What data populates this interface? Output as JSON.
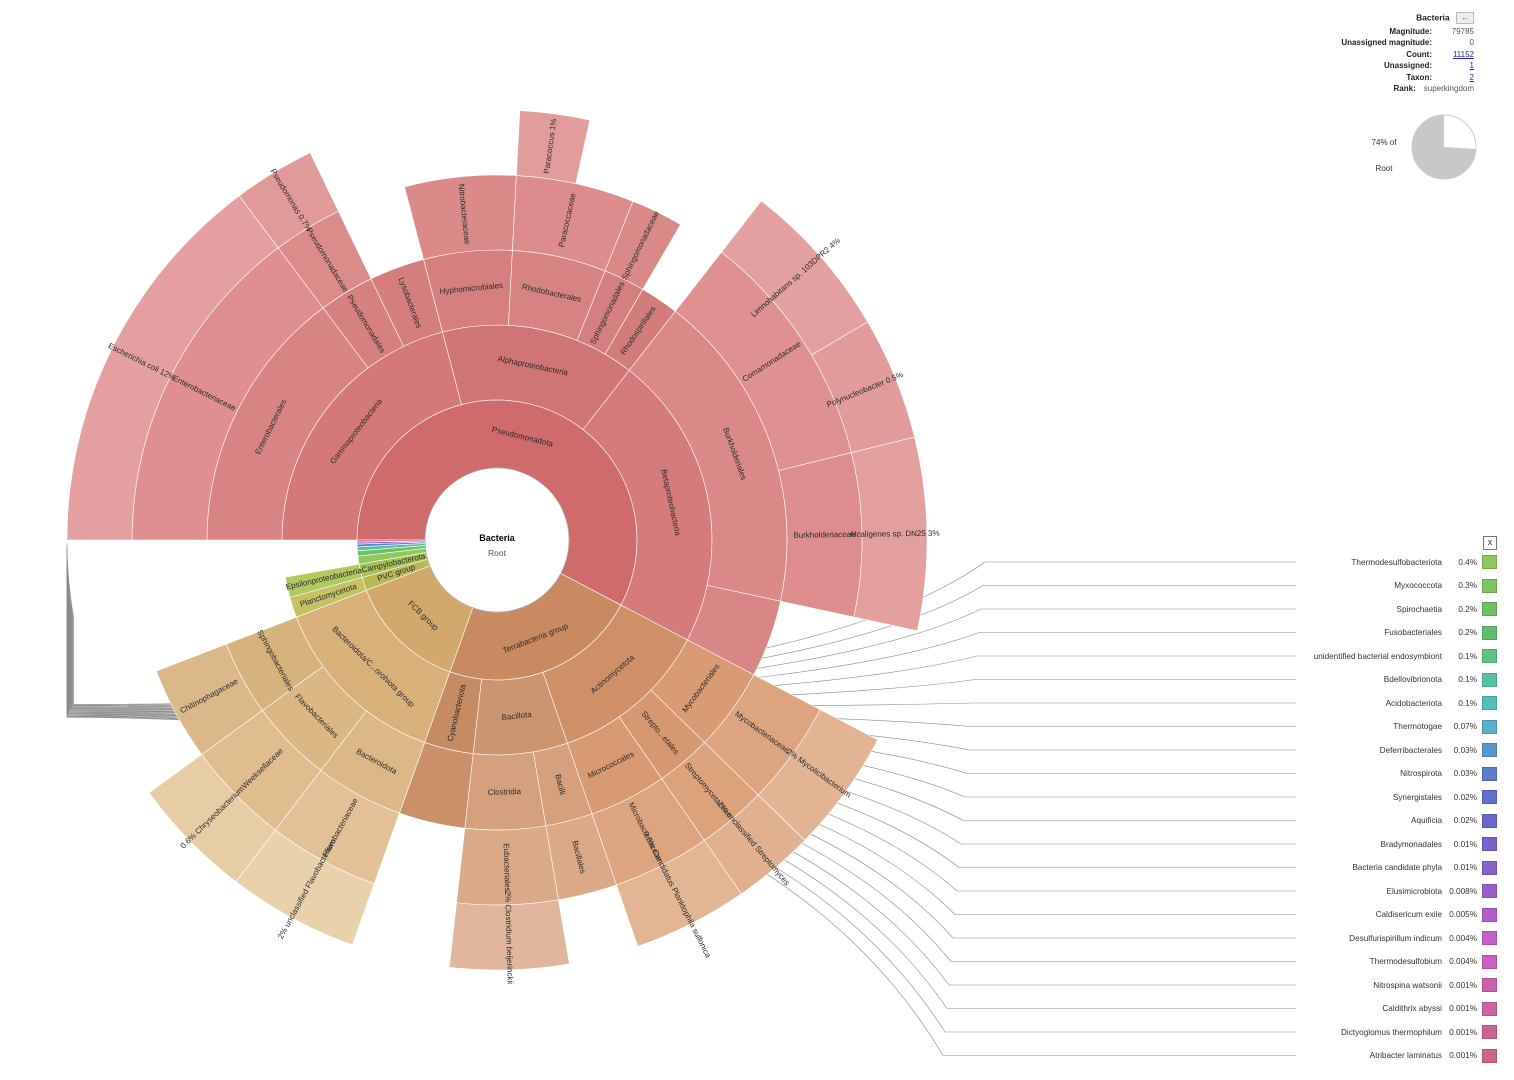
{
  "colors": {
    "red": "#cf6b6b",
    "orange": "#c98a62",
    "tan": "#d3a86c",
    "olive": "#b8b857",
    "green": "#79c25f"
  },
  "info_panel": {
    "title": "Bacteria",
    "back_label": "←",
    "rows": [
      {
        "key": "Magnitude:",
        "value": "79785",
        "link": false
      },
      {
        "key": "Unassigned magnitude:",
        "value": "0",
        "link": false
      },
      {
        "key": "Count:",
        "value": "11152",
        "link": true
      },
      {
        "key": "Unassigned:",
        "value": "1",
        "link": true
      },
      {
        "key": "Taxon:",
        "value": "2",
        "link": true
      },
      {
        "key": "Rank:",
        "value": "superkingdom",
        "link": false
      }
    ],
    "share_percent": "74% of",
    "share_of": "Root",
    "share_fraction": 0.74
  },
  "legend": {
    "close_label": "x",
    "items": [
      {
        "name": "Thermodesulfobacteriota",
        "pct": "0.4%",
        "color": "#8fc85c"
      },
      {
        "name": "Myxococcota",
        "pct": "0.3%",
        "color": "#7dc45e"
      },
      {
        "name": "Spirochaetia",
        "pct": "0.2%",
        "color": "#6cc262"
      },
      {
        "name": "Fusobacteriales",
        "pct": "0.2%",
        "color": "#5fc06b"
      },
      {
        "name": "unidentified bacterial endosymbiont",
        "pct": "0.1%",
        "color": "#5ec187"
      },
      {
        "name": "Bdellovibrionota",
        "pct": "0.1%",
        "color": "#55c1a0"
      },
      {
        "name": "Acidobacteriota",
        "pct": "0.1%",
        "color": "#52bfbb"
      },
      {
        "name": "Thermotogae",
        "pct": "0.07%",
        "color": "#56b1c9"
      },
      {
        "name": "Deferribacterales",
        "pct": "0.03%",
        "color": "#5897c9"
      },
      {
        "name": "Nitrospirota",
        "pct": "0.03%",
        "color": "#5b7dcb"
      },
      {
        "name": "Synergistales",
        "pct": "0.02%",
        "color": "#6070cc"
      },
      {
        "name": "Aquificia",
        "pct": "0.02%",
        "color": "#6c66cc"
      },
      {
        "name": "Bradymonadales",
        "pct": "0.01%",
        "color": "#7a62cb"
      },
      {
        "name": "Bacteria candidate phyla",
        "pct": "0.01%",
        "color": "#8a60cb"
      },
      {
        "name": "Elusimicrobiota",
        "pct": "0.008%",
        "color": "#9a5ecb"
      },
      {
        "name": "Caldisericum exile",
        "pct": "0.005%",
        "color": "#b05ecc"
      },
      {
        "name": "Desulfurispirillum indicum",
        "pct": "0.004%",
        "color": "#c45ec9"
      },
      {
        "name": "Thermodesulfobium",
        "pct": "0.004%",
        "color": "#cc5fbf"
      },
      {
        "name": "Nitrospina watsonii",
        "pct": "0.001%",
        "color": "#cc60ad"
      },
      {
        "name": "Caldithrix abyssi",
        "pct": "0.001%",
        "color": "#cc629f"
      },
      {
        "name": "Dictyoglomus thermophilum",
        "pct": "0.001%",
        "color": "#cc6493"
      },
      {
        "name": "Atribacter laminatus",
        "pct": "0.001%",
        "color": "#cc6688"
      }
    ]
  },
  "chart_data": {
    "type": "sunburst",
    "center": {
      "title": "Bacteria",
      "subtitle": "Root"
    },
    "start_angle_deg": 180,
    "nodes": [
      {
        "level": 1,
        "start": 0,
        "end": 37.5,
        "label": "Pseudomonadota",
        "color": "#cf6b6b"
      },
      {
        "level": 1,
        "start": 37.5,
        "end": 52.3,
        "label": "Terrabacteria group",
        "color": "#c98a62"
      },
      {
        "level": 1,
        "start": 52.3,
        "end": 61.2,
        "label": "FCB group",
        "color": "#d3a86c"
      },
      {
        "level": 1,
        "start": 61.2,
        "end": 62.2,
        "label": "PVC group",
        "color": "#b8b857"
      },
      {
        "level": 1,
        "start": 62.2,
        "end": 63.2,
        "label": "Campylobacterota",
        "color": "#a9c258"
      },
      {
        "level": 1,
        "start": 63.2,
        "end": 63.8,
        "label": "",
        "color": "#8fc85c"
      },
      {
        "level": 1,
        "start": 63.8,
        "end": 64.2,
        "label": "",
        "color": "#6cc262"
      },
      {
        "level": 1,
        "start": 64.2,
        "end": 64.5,
        "label": "",
        "color": "#55c1a0"
      },
      {
        "level": 1,
        "start": 64.5,
        "end": 64.7,
        "label": "",
        "color": "#5b7dcb"
      },
      {
        "level": 1,
        "start": 64.7,
        "end": 64.85,
        "label": "",
        "color": "#9a5ecb"
      },
      {
        "level": 1,
        "start": 64.85,
        "end": 65,
        "label": "",
        "color": "#cc6688"
      },
      {
        "level": 2,
        "start": 0,
        "end": 13.6,
        "label": "Gammaproteobacteria",
        "color": "#d47878"
      },
      {
        "level": 2,
        "start": 13.6,
        "end": 23.1,
        "label": "Alphaproteobacteria",
        "color": "#d07575"
      },
      {
        "level": 2,
        "start": 23.1,
        "end": 37.5,
        "label": "Betaproteobacteria",
        "color": "#d57b7b"
      },
      {
        "level": 2,
        "start": 37.5,
        "end": 45.3,
        "label": "Actinomycetota",
        "color": "#cf9068"
      },
      {
        "level": 2,
        "start": 45.3,
        "end": 49.9,
        "label": "Bacillota",
        "color": "#cd9470"
      },
      {
        "level": 2,
        "start": 49.9,
        "end": 52.3,
        "label": "Cyanobacteriota",
        "color": "#c58b63"
      },
      {
        "level": 2,
        "start": 52.3,
        "end": 61.2,
        "label": "Bacteroidota/C...orohiota group",
        "color": "#d8b07a"
      },
      {
        "level": 2,
        "start": 61.2,
        "end": 62.2,
        "label": "Planctomycetota",
        "color": "#c4c262"
      },
      {
        "level": 2,
        "start": 62.2,
        "end": 63.2,
        "label": "Epsilonproteobacteria",
        "color": "#b2c860"
      },
      {
        "level": 3,
        "start": 0,
        "end": 9.6,
        "label": "Enterobacterales",
        "color": "#d98484"
      },
      {
        "level": 3,
        "start": 9.6,
        "end": 11.6,
        "label": "Pseudomonadales",
        "color": "#d68080"
      },
      {
        "level": 3,
        "start": 11.6,
        "end": 13.6,
        "label": "Lysobacterales",
        "color": "#d47e7e"
      },
      {
        "level": 3,
        "start": 13.6,
        "end": 16.8,
        "label": "Hyphomicrobiales",
        "color": "#d57f7f"
      },
      {
        "level": 3,
        "start": 16.8,
        "end": 20.2,
        "label": "Rhodobacterales",
        "color": "#d78383"
      },
      {
        "level": 3,
        "start": 20.2,
        "end": 21.7,
        "label": "Sphingomonadales",
        "color": "#d48080"
      },
      {
        "level": 3,
        "start": 21.7,
        "end": 23.1,
        "label": "Rhodospirillales",
        "color": "#d27c7c"
      },
      {
        "level": 3,
        "start": 23.1,
        "end": 34.7,
        "label": "Burkholderiales",
        "color": "#db8888"
      },
      {
        "level": 3,
        "start": 34.7,
        "end": 37.5,
        "label": "",
        "color": "#d98686"
      },
      {
        "level": 3,
        "start": 37.5,
        "end": 40.5,
        "label": "Mycobacteriales",
        "color": "#d89b74"
      },
      {
        "level": 3,
        "start": 40.5,
        "end": 42.5,
        "label": "Strepto...etales",
        "color": "#d69870"
      },
      {
        "level": 3,
        "start": 42.5,
        "end": 45.3,
        "label": "Micrococcales",
        "color": "#d79a72"
      },
      {
        "level": 3,
        "start": 45.3,
        "end": 47.0,
        "label": "Bacilli",
        "color": "#d6a07c"
      },
      {
        "level": 3,
        "start": 47.0,
        "end": 49.9,
        "label": "Clostridia",
        "color": "#d4a07d"
      },
      {
        "level": 3,
        "start": 49.9,
        "end": 52.3,
        "label": "",
        "color": "#cb9069"
      },
      {
        "level": 3,
        "start": 52.3,
        "end": 55.5,
        "label": "Bacteroidota",
        "color": "#dcb888"
      },
      {
        "level": 3,
        "start": 55.5,
        "end": 58.5,
        "label": "Flavobacteriales",
        "color": "#dbb784"
      },
      {
        "level": 3,
        "start": 58.5,
        "end": 61.2,
        "label": "Sphingobacteriales",
        "color": "#d6b27c"
      },
      {
        "level": 4,
        "start": 0,
        "end": 9.6,
        "label": "Enterobacteriaceae",
        "color": "#df8f8f"
      },
      {
        "level": 4,
        "start": 9.6,
        "end": 11.6,
        "label": "Pseudomonadaceae",
        "color": "#dc8b8b"
      },
      {
        "level": 4,
        "start": 13.6,
        "end": 16.8,
        "label": "Nitrobacteraceae",
        "color": "#db8a8a"
      },
      {
        "level": 4,
        "start": 16.8,
        "end": 20.2,
        "label": "Paracoccaceae",
        "color": "#dc8c8c"
      },
      {
        "level": 4,
        "start": 20.2,
        "end": 21.7,
        "label": "Sphingomonadaceae",
        "color": "#da8989"
      },
      {
        "level": 4,
        "start": 23.1,
        "end": 30.0,
        "label": "Comamonadaceae",
        "color": "#df9090"
      },
      {
        "level": 4,
        "start": 30.0,
        "end": 34.7,
        "label": "Burkholderiaceae",
        "color": "#dd8d8d"
      },
      {
        "level": 4,
        "start": 37.5,
        "end": 40.5,
        "label": "Mycobacteriaceae",
        "color": "#dca47f"
      },
      {
        "level": 4,
        "start": 40.5,
        "end": 42.5,
        "label": "Streptomycetaceae",
        "color": "#dba27c"
      },
      {
        "level": 4,
        "start": 42.5,
        "end": 45.3,
        "label": "Microbacteriaceae",
        "color": "#dca57f"
      },
      {
        "level": 4,
        "start": 45.3,
        "end": 47.0,
        "label": "Bacillales",
        "color": "#dba988"
      },
      {
        "level": 4,
        "start": 47.0,
        "end": 49.9,
        "label": "Eubacteriales",
        "color": "#d9a988"
      },
      {
        "level": 4,
        "start": 52.3,
        "end": 55.5,
        "label": "Flavobacteriaceae",
        "color": "#e1c195"
      },
      {
        "level": 4,
        "start": 55.5,
        "end": 58.5,
        "label": "Weeksellaceae",
        "color": "#dfbd8f"
      },
      {
        "level": 4,
        "start": 58.5,
        "end": 61.2,
        "label": "Chitinophagaceae",
        "color": "#dbb889"
      },
      {
        "level": 5,
        "start": 0,
        "end": 9.6,
        "label": "Escherichia coli  12%",
        "color": "#e4a0a0"
      },
      {
        "level": 5,
        "start": 9.6,
        "end": 11.6,
        "label": "Pseudomonas  0.7%",
        "color": "#e19a9a"
      },
      {
        "level": 5,
        "start": 16.8,
        "end": 18.5,
        "label": "Paracoccus  1%",
        "color": "#e19c9c"
      },
      {
        "level": 5,
        "start": 23.1,
        "end": 27.0,
        "label": "Limnohabitans sp. 103DPR2  4%",
        "color": "#e3a0a0"
      },
      {
        "level": 5,
        "start": 27.0,
        "end": 30.0,
        "label": "Polynucleobacter  0.5%",
        "color": "#e19b9b"
      },
      {
        "level": 5,
        "start": 30.0,
        "end": 34.7,
        "label": "Alcaligenes sp. DN25  3%",
        "color": "#e39e9e"
      },
      {
        "level": 5,
        "start": 37.5,
        "end": 40.5,
        "label": "2%  Mycolicibacterium",
        "color": "#e2b493"
      },
      {
        "level": 5,
        "start": 40.5,
        "end": 42.5,
        "label": "2%  unclassified Streptomyces",
        "color": "#e1b08f"
      },
      {
        "level": 5,
        "start": 42.5,
        "end": 45.3,
        "label": "0.8%  Candidatus Planktophila sulfonica",
        "color": "#e2b593"
      },
      {
        "level": 5,
        "start": 47.0,
        "end": 49.9,
        "label": "2%  Clostridium beijerinckii",
        "color": "#e0b79c"
      },
      {
        "level": 5,
        "start": 52.3,
        "end": 55.5,
        "label": "2%  unclassified Flavobacterium",
        "color": "#e8d1ab"
      },
      {
        "level": 5,
        "start": 55.5,
        "end": 58.5,
        "label": "0.6%  Chryseobacterium",
        "color": "#e6cda5"
      }
    ]
  }
}
